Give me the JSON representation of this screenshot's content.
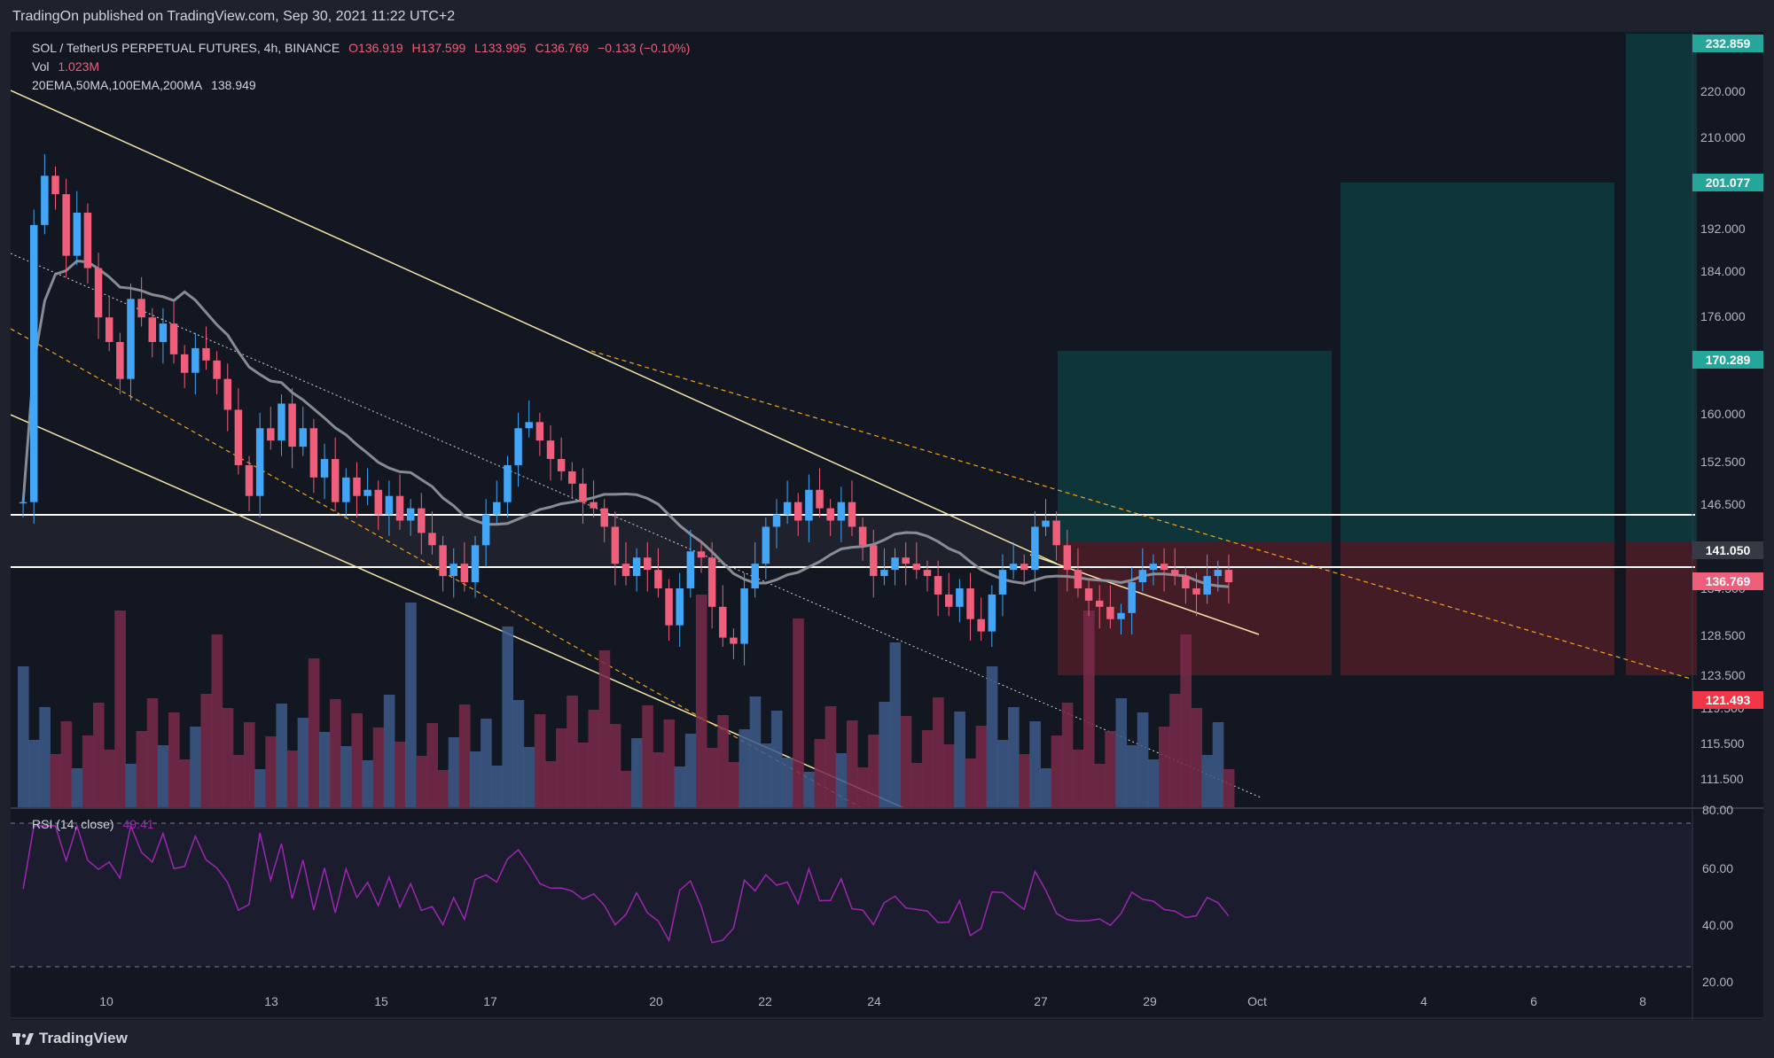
{
  "publisher": "TradingOn published on TradingView.com, Sep 30, 2021 11:22 UTC+2",
  "footer_logo": "TradingView",
  "legend": {
    "symbol": "SOL / TetherUS PERPETUAL FUTURES, 4h, BINANCE",
    "open": "O136.919",
    "high": "H137.599",
    "low": "L133.995",
    "close": "C136.769",
    "change": "−0.133 (−0.10%)",
    "vol_label": "Vol",
    "vol_value": "1.023M",
    "ma_label": "20EMA,50MA,100EMA,200MA",
    "ma_value": "138.949",
    "rsi_label": "RSI (14, close)",
    "rsi_value": "49.41"
  },
  "price_axis": [
    "230.000",
    "220.000",
    "210.000",
    "192.000",
    "184.000",
    "176.000",
    "168.000",
    "160.000",
    "152.500",
    "146.500",
    "134.500",
    "128.500",
    "123.500",
    "119.500",
    "115.500",
    "111.500"
  ],
  "rsi_axis": [
    "80.00",
    "60.00",
    "40.00",
    "20.00"
  ],
  "time_axis": [
    "10",
    "13",
    "15",
    "17",
    "20",
    "22",
    "24",
    "27",
    "29",
    "Oct",
    "4",
    "6",
    "8"
  ],
  "price_tags": [
    {
      "label": "232.859",
      "color": "#26a69a"
    },
    {
      "label": "201.077",
      "color": "#26a69a"
    },
    {
      "label": "170.289",
      "color": "#26a69a"
    },
    {
      "label": "141.050",
      "color": "#363a45"
    },
    {
      "label": "136.769",
      "color": "#ef5e7a"
    },
    {
      "label": "121.493",
      "color": "#f23645"
    }
  ],
  "colors": {
    "up": "#42a5f5",
    "down": "#ef5e7a",
    "target": "#0b3b3b",
    "stop": "#4a1f27",
    "ma": "#9598a1",
    "rsi": "#9c27b0"
  },
  "chart_data": {
    "type": "candlestick",
    "symbol": "SOL / TetherUS PERPETUAL FUTURES",
    "interval": "4h",
    "exchange": "BINANCE",
    "last_bar": {
      "open": 136.919,
      "high": 137.599,
      "low": 133.995,
      "close": 136.769,
      "change": -0.133,
      "change_pct": -0.1
    },
    "volume_last": "1.023M",
    "ma_last": 138.949,
    "rsi_last": 49.41,
    "rsi_levels": [
      70,
      30
    ],
    "price_scale_ticks": [
      111.5,
      115.5,
      119.5,
      123.5,
      128.5,
      134.5,
      146.5,
      152.5,
      160,
      168,
      176,
      184,
      192,
      210,
      220,
      230
    ],
    "horizontal_levels": [
      144.5,
      137.0
    ],
    "positions": [
      {
        "entry": 141.05,
        "stop": 121.493,
        "target": 170.289
      },
      {
        "entry": 141.05,
        "stop": 121.493,
        "target": 201.077
      },
      {
        "entry": 141.05,
        "stop": 121.493,
        "target": 232.859
      }
    ],
    "candles_approx": [
      {
        "d": "Sep 9",
        "c": 150
      },
      {
        "d": "Sep 10",
        "c": 205
      },
      {
        "d": "Sep 11",
        "c": 185
      },
      {
        "d": "Sep 13",
        "c": 152
      },
      {
        "d": "Sep 14",
        "c": 162
      },
      {
        "d": "Sep 16",
        "c": 155
      },
      {
        "d": "Sep 17",
        "c": 146
      },
      {
        "d": "Sep 18",
        "c": 158
      },
      {
        "d": "Sep 19",
        "c": 164
      },
      {
        "d": "Sep 20",
        "c": 142
      },
      {
        "d": "Sep 21",
        "c": 136
      },
      {
        "d": "Sep 22",
        "c": 130
      },
      {
        "d": "Sep 23",
        "c": 147
      },
      {
        "d": "Sep 24",
        "c": 138
      },
      {
        "d": "Sep 25",
        "c": 139
      },
      {
        "d": "Sep 26",
        "c": 130
      },
      {
        "d": "Sep 27",
        "c": 147
      },
      {
        "d": "Sep 28",
        "c": 134
      },
      {
        "d": "Sep 29",
        "c": 139
      },
      {
        "d": "Sep 30",
        "c": 136.769
      }
    ]
  }
}
